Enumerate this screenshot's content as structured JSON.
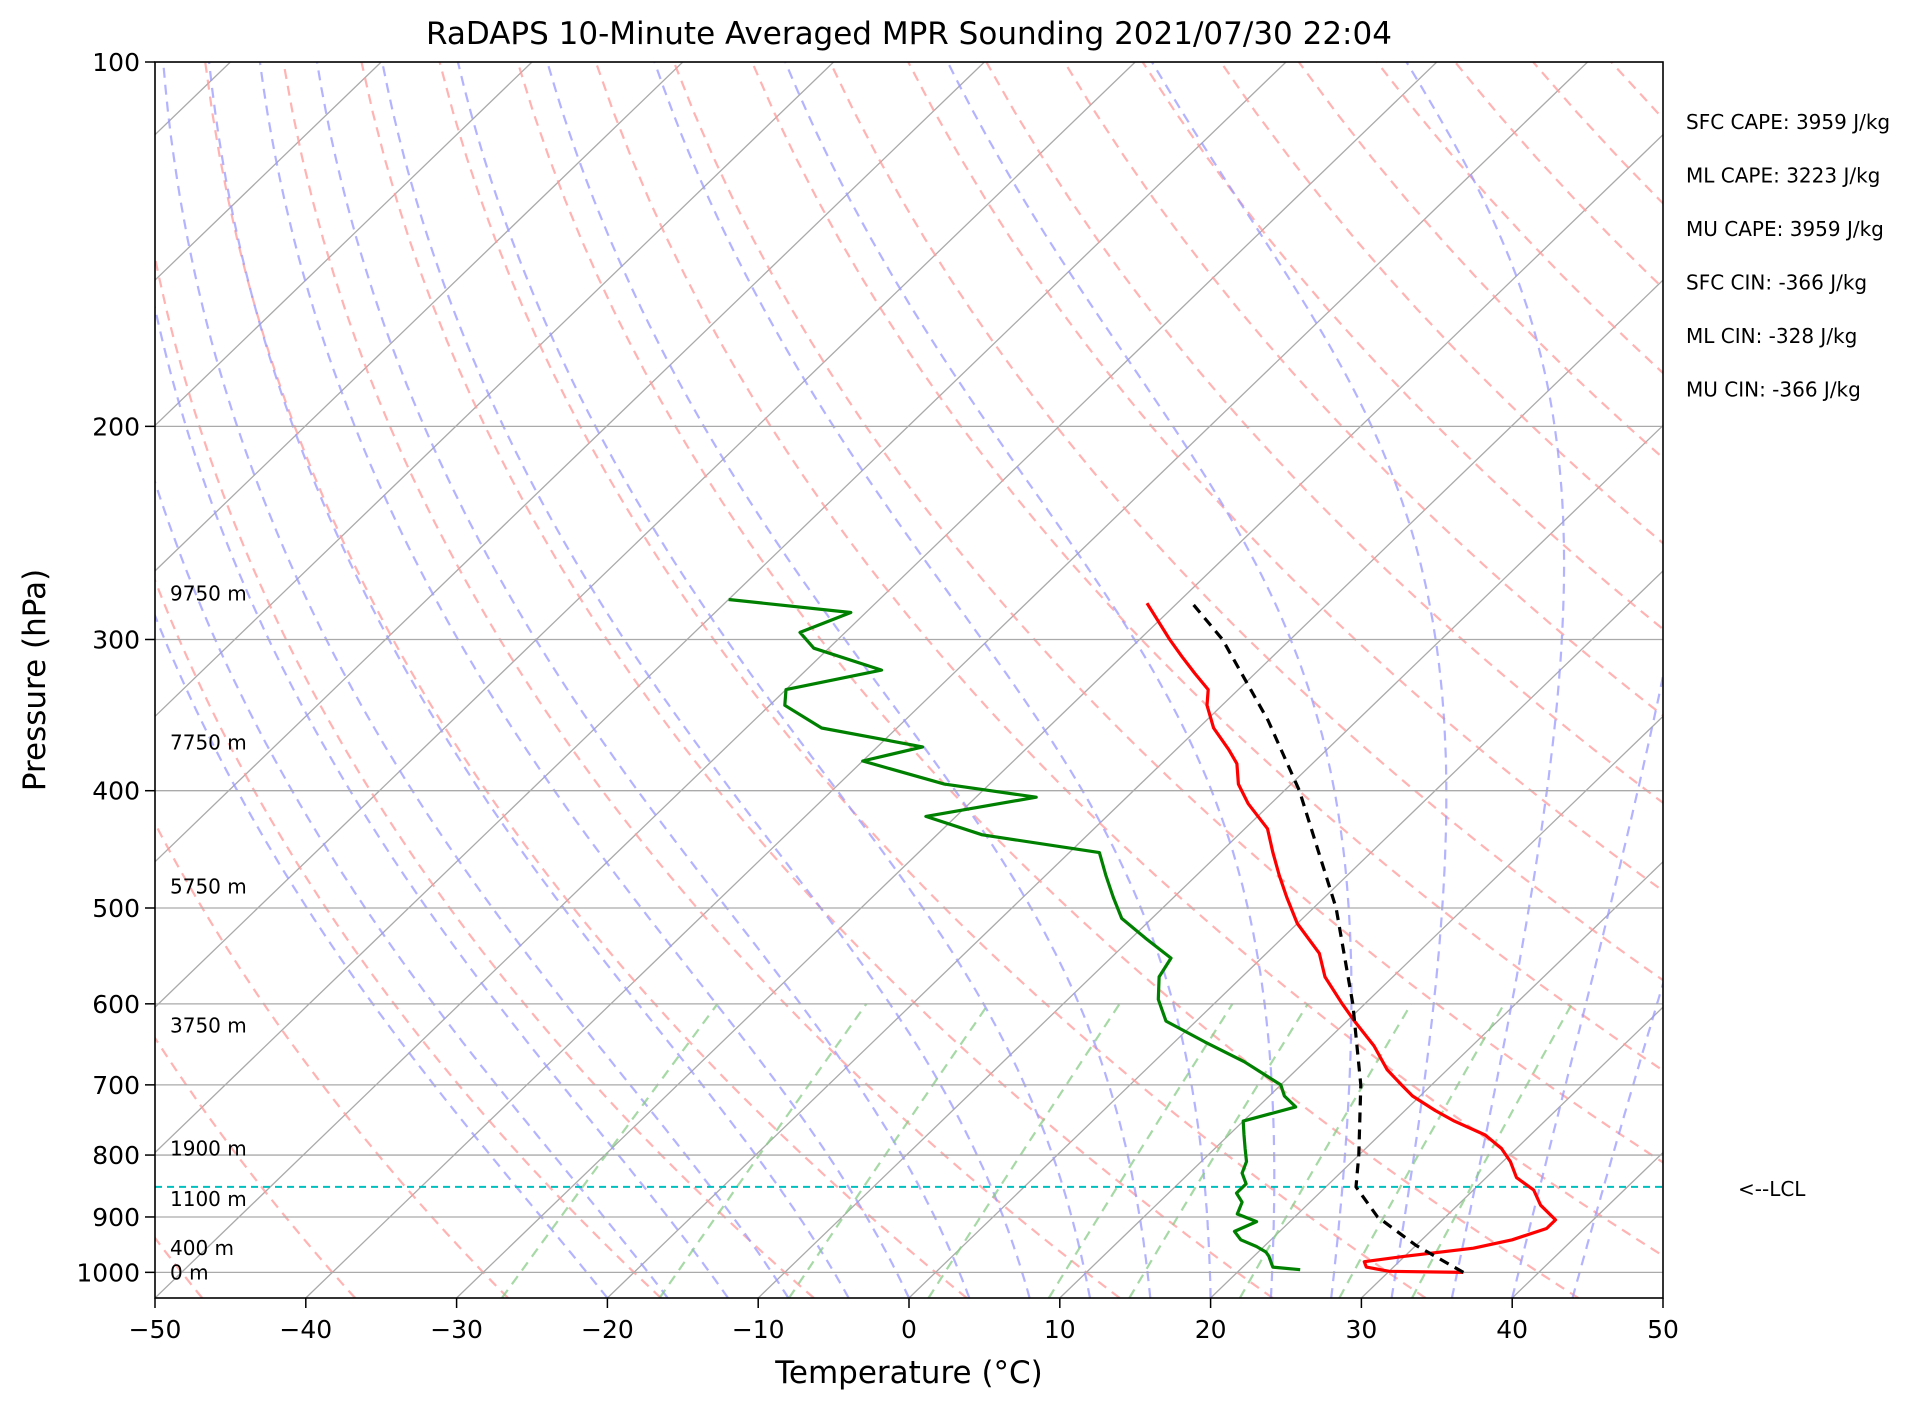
{
  "chart_data": {
    "type": "line",
    "title": "RaDAPS 10-Minute Averaged MPR Sounding 2021/07/30 22:04",
    "xlabel": "Temperature (°C)",
    "ylabel": "Pressure (hPa)",
    "xlim": [
      -50,
      50
    ],
    "ylim": [
      1050,
      100
    ],
    "y_scale": "log",
    "skew_t": true,
    "x_ticks": [
      -50,
      -40,
      -30,
      -20,
      -10,
      0,
      10,
      20,
      30,
      40,
      50
    ],
    "x_tick_labels": [
      "−50",
      "−40",
      "−30",
      "−20",
      "−10",
      "0",
      "10",
      "20",
      "30",
      "40",
      "50"
    ],
    "y_ticks": [
      100,
      200,
      300,
      400,
      500,
      600,
      700,
      800,
      900,
      1000
    ],
    "y_tick_labels": [
      "100",
      "200",
      "300",
      "400",
      "500",
      "600",
      "700",
      "800",
      "900",
      "1000"
    ],
    "grid": "pressure lines",
    "series": [
      {
        "role": "temperature",
        "color": "#ff0000",
        "points": [
          {
            "p": 1000,
            "t": 35.0
          },
          {
            "p": 998,
            "t": 30.0
          },
          {
            "p": 990,
            "t": 28.2
          },
          {
            "p": 980,
            "t": 27.7
          },
          {
            "p": 970,
            "t": 30.0
          },
          {
            "p": 955,
            "t": 34.0
          },
          {
            "p": 940,
            "t": 36.0
          },
          {
            "p": 920,
            "t": 37.5
          },
          {
            "p": 905,
            "t": 37.5
          },
          {
            "p": 880,
            "t": 35.5
          },
          {
            "p": 855,
            "t": 34.0
          },
          {
            "p": 835,
            "t": 32.0
          },
          {
            "p": 810,
            "t": 30.5
          },
          {
            "p": 790,
            "t": 29.0
          },
          {
            "p": 770,
            "t": 27.0
          },
          {
            "p": 750,
            "t": 24.0
          },
          {
            "p": 735,
            "t": 22.0
          },
          {
            "p": 715,
            "t": 19.5
          },
          {
            "p": 700,
            "t": 18.0
          },
          {
            "p": 680,
            "t": 16.0
          },
          {
            "p": 650,
            "t": 13.5
          },
          {
            "p": 620,
            "t": 10.5
          },
          {
            "p": 600,
            "t": 8.5
          },
          {
            "p": 570,
            "t": 5.5
          },
          {
            "p": 545,
            "t": 3.5
          },
          {
            "p": 515,
            "t": 0.0
          },
          {
            "p": 490,
            "t": -2.5
          },
          {
            "p": 470,
            "t": -4.5
          },
          {
            "p": 450,
            "t": -6.5
          },
          {
            "p": 430,
            "t": -8.5
          },
          {
            "p": 410,
            "t": -11.5
          },
          {
            "p": 395,
            "t": -13.5
          },
          {
            "p": 380,
            "t": -15.0
          },
          {
            "p": 370,
            "t": -16.5
          },
          {
            "p": 355,
            "t": -19.0
          },
          {
            "p": 340,
            "t": -21.0
          },
          {
            "p": 330,
            "t": -22.0
          },
          {
            "p": 320,
            "t": -24.0
          },
          {
            "p": 310,
            "t": -26.0
          },
          {
            "p": 300,
            "t": -28.0
          },
          {
            "p": 280,
            "t": -32.0
          }
        ]
      },
      {
        "role": "dewpoint",
        "color": "#008000",
        "points": [
          {
            "p": 995,
            "t": 24.0
          },
          {
            "p": 990,
            "t": 22.0
          },
          {
            "p": 980,
            "t": 21.5
          },
          {
            "p": 970,
            "t": 21.0
          },
          {
            "p": 962,
            "t": 20.5
          },
          {
            "p": 952,
            "t": 19.5
          },
          {
            "p": 940,
            "t": 18.0
          },
          {
            "p": 925,
            "t": 17.0
          },
          {
            "p": 908,
            "t": 17.8
          },
          {
            "p": 895,
            "t": 16.0
          },
          {
            "p": 875,
            "t": 15.5
          },
          {
            "p": 860,
            "t": 14.5
          },
          {
            "p": 845,
            "t": 14.5
          },
          {
            "p": 828,
            "t": 13.5
          },
          {
            "p": 810,
            "t": 13.0
          },
          {
            "p": 790,
            "t": 12.0
          },
          {
            "p": 770,
            "t": 11.0
          },
          {
            "p": 750,
            "t": 10.0
          },
          {
            "p": 730,
            "t": 12.5
          },
          {
            "p": 715,
            "t": 11.0
          },
          {
            "p": 700,
            "t": 10.0
          },
          {
            "p": 670,
            "t": 6.0
          },
          {
            "p": 645,
            "t": 2.0
          },
          {
            "p": 620,
            "t": -2.0
          },
          {
            "p": 595,
            "t": -4.0
          },
          {
            "p": 570,
            "t": -5.5
          },
          {
            "p": 550,
            "t": -6.0
          },
          {
            "p": 530,
            "t": -9.0
          },
          {
            "p": 510,
            "t": -12.0
          },
          {
            "p": 490,
            "t": -14.0
          },
          {
            "p": 470,
            "t": -16.0
          },
          {
            "p": 450,
            "t": -18.0
          },
          {
            "p": 435,
            "t": -27.0
          },
          {
            "p": 420,
            "t": -32.0
          },
          {
            "p": 405,
            "t": -26.0
          },
          {
            "p": 395,
            "t": -33.0
          },
          {
            "p": 378,
            "t": -40.0
          },
          {
            "p": 368,
            "t": -37.0
          },
          {
            "p": 355,
            "t": -45.0
          },
          {
            "p": 340,
            "t": -49.0
          },
          {
            "p": 330,
            "t": -50.0
          },
          {
            "p": 318,
            "t": -45.0
          },
          {
            "p": 305,
            "t": -51.0
          },
          {
            "p": 296,
            "t": -53.0
          },
          {
            "p": 285,
            "t": -51.0
          },
          {
            "p": 278,
            "t": -60.0
          }
        ]
      },
      {
        "role": "parcel_profile",
        "color": "#000000",
        "style": "dashed",
        "points": [
          {
            "p": 1000,
            "t": 35.0
          },
          {
            "p": 950,
            "t": 30.0
          },
          {
            "p": 900,
            "t": 25.5
          },
          {
            "p": 850,
            "t": 22.0
          },
          {
            "p": 800,
            "t": 20.0
          },
          {
            "p": 700,
            "t": 15.3
          },
          {
            "p": 600,
            "t": 9.2
          },
          {
            "p": 500,
            "t": 1.5
          },
          {
            "p": 400,
            "t": -9.0
          },
          {
            "p": 350,
            "t": -15.9
          },
          {
            "p": 300,
            "t": -24.5
          },
          {
            "p": 280,
            "t": -29.0
          }
        ]
      }
    ],
    "lcl": {
      "pressure": 850,
      "label": "<--LCL",
      "color": "#00bfbf"
    },
    "height_labels": [
      {
        "p": 275,
        "text": "9750 m"
      },
      {
        "p": 365,
        "text": "7750 m"
      },
      {
        "p": 480,
        "text": "5750 m"
      },
      {
        "p": 625,
        "text": "3750 m"
      },
      {
        "p": 790,
        "text": "1900 m"
      },
      {
        "p": 870,
        "text": "1100 m"
      },
      {
        "p": 955,
        "text": "400 m"
      },
      {
        "p": 1000,
        "text": "0 m"
      }
    ],
    "annotations": [
      "SFC CAPE: 3959 J/kg",
      "ML CAPE: 3223 J/kg",
      "MU CAPE: 3959 J/kg",
      "SFC CIN: -366 J/kg",
      "ML CIN: -328 J/kg",
      "MU CIN: -366 J/kg"
    ],
    "background_lines": {
      "isotherms": {
        "color": "#aaaaaa"
      },
      "dry_adiabats": {
        "color": "#ff9999",
        "style": "dashed"
      },
      "moist_adiabats": {
        "color": "#9999ff",
        "style": "dashed"
      },
      "mixing_ratio_lines": {
        "color": "#88cc88",
        "style": "dashed"
      }
    }
  }
}
